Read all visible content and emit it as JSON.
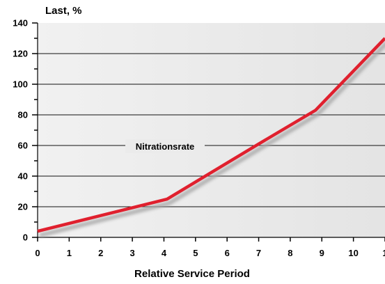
{
  "chart_data": {
    "type": "line",
    "ylabel": "Last, %",
    "xlabel": "Relative Service Period",
    "annotation": "Nitrationsrate",
    "x_ticks": [
      "0",
      "1",
      "2",
      "3",
      "4",
      "5",
      "6",
      "7",
      "8",
      "9",
      "10",
      "1"
    ],
    "y_ticks": [
      "0",
      "20",
      "40",
      "60",
      "80",
      "100",
      "120",
      "140"
    ],
    "xlim": [
      0,
      11
    ],
    "ylim": [
      0,
      140
    ],
    "grid": "horizontal",
    "series": [
      {
        "x": [
          0,
          4.1,
          7,
          8.8,
          11
        ],
        "y": [
          4,
          25,
          61,
          83,
          130
        ]
      }
    ],
    "colors": {
      "background": "#ebebeb",
      "line": "#e0202e",
      "shadow": "#a8a8a8",
      "grid": "#111111"
    }
  }
}
